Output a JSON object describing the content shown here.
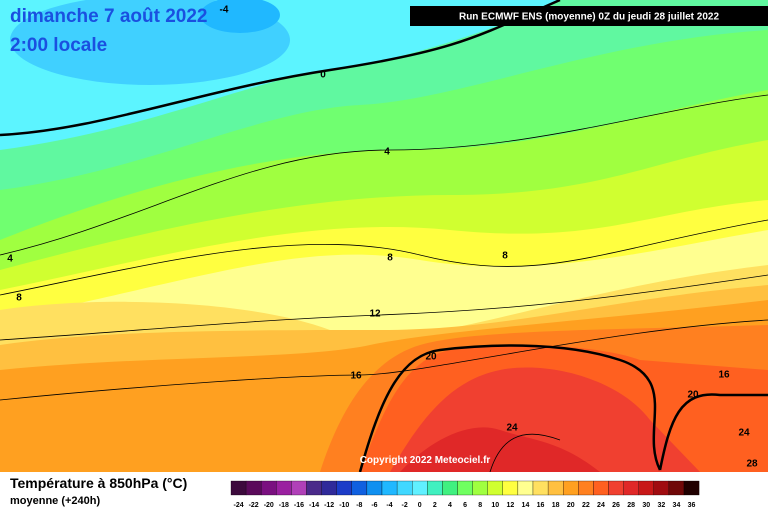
{
  "header": {
    "title": "dimanche 7 août 2022",
    "subtitle": "2:00 locale",
    "run": "Run ECMWF ENS (moyenne) 0Z du jeudi 28 juillet 2022"
  },
  "map": {
    "contour_labels": [
      -4,
      0,
      4,
      8,
      12,
      16,
      20,
      24,
      4,
      8,
      8,
      16,
      20,
      24,
      28
    ],
    "copyright": "Copyright 2022 Meteociel.fr"
  },
  "legend": {
    "title": "Température à 850hPa (°C)",
    "subtitle": "moyenne  (+240h)",
    "labels": [
      -24,
      -22,
      -20,
      -18,
      -16,
      -14,
      -12,
      -10,
      -8,
      -6,
      -4,
      -2,
      0,
      2,
      4,
      6,
      8,
      10,
      12,
      14,
      16,
      18,
      20,
      22,
      24,
      26,
      28,
      30,
      32,
      34,
      36
    ],
    "colors": [
      "#3c0a3c",
      "#5a0a5a",
      "#7a1080",
      "#9a20a0",
      "#b040b8",
      "#4a2a8a",
      "#302a9a",
      "#1c3cc8",
      "#1060e0",
      "#1090f0",
      "#20b8ff",
      "#40d8ff",
      "#60f0ff",
      "#40f0c0",
      "#40f080",
      "#70ff60",
      "#a0ff40",
      "#d0ff30",
      "#ffff40",
      "#ffff90",
      "#ffe060",
      "#ffc040",
      "#ffa020",
      "#ff8020",
      "#ff6020",
      "#f04030",
      "#e02828",
      "#c81818",
      "#a00c10",
      "#700808",
      "#200000"
    ]
  }
}
